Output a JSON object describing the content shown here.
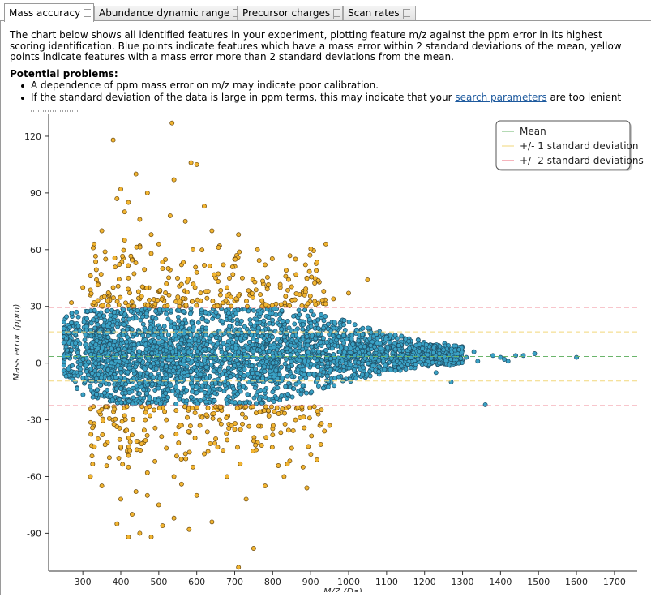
{
  "tabs": [
    {
      "label": "Mass accuracy",
      "active": true
    },
    {
      "label": "Abundance dynamic range",
      "active": false
    },
    {
      "label": "Precursor charges",
      "active": false
    },
    {
      "label": "Scan rates",
      "active": false
    }
  ],
  "intro": {
    "description": "The chart below shows all identified features in your experiment, plotting feature m/z against the ppm error in its highest scoring identification. Blue points indicate features which have a mass error within 2 standard deviations of the mean, yellow points indicate features with a mass error more than 2 standard deviations from the mean.",
    "potential_title": "Potential problems:",
    "bullet1": "A dependence of ppm mass error on m/z may indicate poor calibration.",
    "bullet2_before": "If the standard deviation of the data is large in ppm terms, this may indicate that your ",
    "bullet2_link": "search parameters",
    "bullet2_after": " are too lenient"
  },
  "colors": {
    "within": "#3aa2c6",
    "outside": "#f2b531",
    "mean": "#6bb56b",
    "sd1": "#f2d77a",
    "sd2": "#ee6a78"
  },
  "chart_data": {
    "type": "scatter",
    "xlabel": "M/Z (Da)",
    "ylabel": "Mass error (ppm)",
    "xlim": [
      210,
      1760
    ],
    "ylim": [
      -110,
      132
    ],
    "xticks": [
      300,
      400,
      500,
      600,
      700,
      800,
      900,
      1000,
      1100,
      1200,
      1300,
      1400,
      1500,
      1600,
      1700
    ],
    "yticks": [
      -90,
      -60,
      -30,
      0,
      30,
      60,
      90,
      120
    ],
    "legend_position": "top-right",
    "legend": [
      "Mean",
      "+/- 1 standard deviation",
      "+/- 2 standard deviations"
    ],
    "mean": 3.5,
    "sd1": [
      -9.5,
      16.5
    ],
    "sd2": [
      -22.5,
      29.5
    ],
    "band": {
      "x": [
        240,
        300,
        400,
        500,
        600,
        700,
        800,
        900,
        1000,
        1100,
        1200,
        1300
      ],
      "hi": [
        25,
        28,
        29,
        29,
        29,
        29,
        29,
        28,
        22,
        16,
        12,
        9
      ],
      "lo": [
        -3,
        -18,
        -22,
        -22,
        -22,
        -22,
        -21,
        -16,
        -10,
        -5,
        -2,
        -1
      ]
    },
    "outliers_high": [
      [
        380,
        118
      ],
      [
        535,
        127
      ],
      [
        585,
        106
      ],
      [
        600,
        105
      ],
      [
        440,
        100
      ],
      [
        470,
        90
      ],
      [
        540,
        97
      ],
      [
        390,
        87
      ],
      [
        450,
        76
      ],
      [
        420,
        85
      ],
      [
        330,
        63
      ],
      [
        350,
        70
      ],
      [
        570,
        75
      ],
      [
        620,
        83
      ],
      [
        640,
        70
      ],
      [
        660,
        62
      ],
      [
        700,
        55
      ],
      [
        720,
        45
      ],
      [
        780,
        52
      ],
      [
        860,
        55
      ],
      [
        940,
        63
      ],
      [
        1000,
        37
      ],
      [
        1050,
        44
      ],
      [
        360,
        55
      ],
      [
        480,
        58
      ],
      [
        510,
        50
      ],
      [
        560,
        52
      ],
      [
        600,
        48
      ],
      [
        420,
        45
      ],
      [
        380,
        40
      ],
      [
        340,
        42
      ],
      [
        460,
        40
      ],
      [
        500,
        38
      ],
      [
        650,
        45
      ],
      [
        680,
        40
      ],
      [
        740,
        36
      ],
      [
        820,
        40
      ],
      [
        880,
        38
      ],
      [
        320,
        36
      ],
      [
        550,
        35
      ],
      [
        610,
        33
      ],
      [
        700,
        33
      ],
      [
        410,
        65
      ],
      [
        480,
        68
      ],
      [
        590,
        60
      ],
      [
        430,
        55
      ],
      [
        520,
        42
      ],
      [
        760,
        60
      ],
      [
        890,
        45
      ],
      [
        960,
        34
      ],
      [
        450,
        34
      ],
      [
        370,
        34
      ],
      [
        630,
        38
      ],
      [
        670,
        52
      ],
      [
        710,
        68
      ],
      [
        400,
        92
      ],
      [
        410,
        80
      ],
      [
        530,
        78
      ],
      [
        450,
        62
      ],
      [
        500,
        63
      ],
      [
        300,
        40
      ],
      [
        270,
        32
      ]
    ],
    "outliers_low": [
      [
        710,
        -108
      ],
      [
        750,
        -98
      ],
      [
        420,
        -92
      ],
      [
        450,
        -90
      ],
      [
        480,
        -92
      ],
      [
        390,
        -85
      ],
      [
        510,
        -86
      ],
      [
        540,
        -82
      ],
      [
        580,
        -88
      ],
      [
        640,
        -84
      ],
      [
        400,
        -72
      ],
      [
        440,
        -68
      ],
      [
        470,
        -70
      ],
      [
        350,
        -65
      ],
      [
        320,
        -60
      ],
      [
        560,
        -64
      ],
      [
        600,
        -70
      ],
      [
        680,
        -60
      ],
      [
        730,
        -72
      ],
      [
        780,
        -65
      ],
      [
        830,
        -60
      ],
      [
        890,
        -66
      ],
      [
        880,
        -55
      ],
      [
        850,
        -45
      ],
      [
        800,
        -38
      ],
      [
        760,
        -42
      ],
      [
        700,
        -35
      ],
      [
        650,
        -40
      ],
      [
        620,
        -48
      ],
      [
        590,
        -55
      ],
      [
        520,
        -45
      ],
      [
        490,
        -52
      ],
      [
        460,
        -42
      ],
      [
        430,
        -38
      ],
      [
        400,
        -45
      ],
      [
        370,
        -50
      ],
      [
        340,
        -40
      ],
      [
        330,
        -32
      ],
      [
        380,
        -30
      ],
      [
        410,
        -28
      ],
      [
        520,
        -30
      ],
      [
        560,
        -33
      ],
      [
        610,
        -28
      ],
      [
        660,
        -30
      ],
      [
        720,
        -27
      ],
      [
        790,
        -28
      ],
      [
        860,
        -30
      ],
      [
        920,
        -27
      ],
      [
        950,
        -33
      ],
      [
        470,
        -58
      ],
      [
        420,
        -55
      ],
      [
        540,
        -60
      ],
      [
        500,
        -75
      ],
      [
        430,
        -80
      ]
    ],
    "sparse_tail": [
      [
        1310,
        3
      ],
      [
        1340,
        1
      ],
      [
        1360,
        -22
      ],
      [
        1380,
        4
      ],
      [
        1400,
        3
      ],
      [
        1410,
        2
      ],
      [
        1420,
        1
      ],
      [
        1440,
        4
      ],
      [
        1460,
        4
      ],
      [
        1490,
        5
      ],
      [
        1600,
        3
      ],
      [
        1330,
        6
      ],
      [
        1290,
        0
      ],
      [
        1270,
        -10
      ],
      [
        1250,
        7
      ],
      [
        1230,
        -5
      ]
    ]
  }
}
